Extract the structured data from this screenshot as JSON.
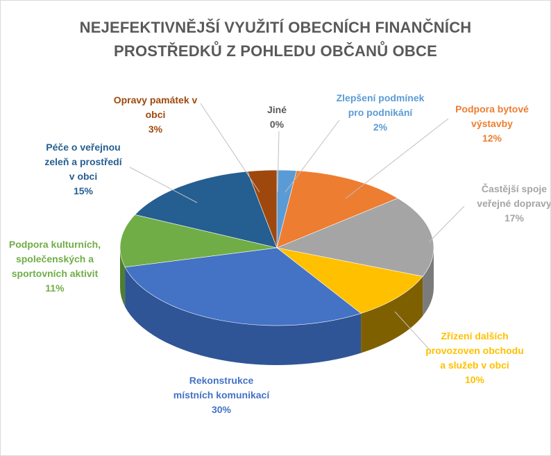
{
  "chart_data": {
    "type": "pie",
    "title_lines": [
      "NEJEFEKTIVNĚJŠÍ VYUŽITÍ OBECNÍCH FINANČNÍCH",
      "PROSTŘEDKŮ Z POHLEDU OBČANŮ OBCE"
    ],
    "slices": [
      {
        "label_lines": [
          "Zlepšení podmínek",
          "pro podnikání"
        ],
        "value": 2,
        "pct": "2%",
        "color": "#5b9bd5",
        "side": "#3f77ab"
      },
      {
        "label_lines": [
          "Podpora bytové",
          "výstavby"
        ],
        "value": 12,
        "pct": "12%",
        "color": "#ed7d31",
        "side": "#b35a1f"
      },
      {
        "label_lines": [
          "Častější spoje",
          "veřejné dopravy"
        ],
        "value": 17,
        "pct": "17%",
        "color": "#a5a5a5",
        "side": "#7b7b7b"
      },
      {
        "label_lines": [
          "Zřízení dalších",
          "provozoven obchodu",
          "a služeb v obci"
        ],
        "value": 10,
        "pct": "10%",
        "color": "#ffc000",
        "side": "#7f6000"
      },
      {
        "label_lines": [
          "Rekonstrukce",
          "místních komunikací"
        ],
        "value": 30,
        "pct": "30%",
        "color": "#4472c4",
        "side": "#2f5597"
      },
      {
        "label_lines": [
          "Podpora kulturních,",
          "společenských a",
          "sportovních aktivit"
        ],
        "value": 11,
        "pct": "11%",
        "color": "#70ad47",
        "side": "#4e7f31"
      },
      {
        "label_lines": [
          "Péče o veřejnou",
          "zeleň a prostředí",
          "v obci"
        ],
        "value": 15,
        "pct": "15%",
        "color": "#255e91",
        "side": "#1a4468"
      },
      {
        "label_lines": [
          "Opravy památek v",
          "obci"
        ],
        "value": 3,
        "pct": "3%",
        "color": "#9e480e",
        "side": "#6e3209"
      },
      {
        "label_lines": [
          "Jiné"
        ],
        "value": 0,
        "pct": "0%",
        "color": "#636363",
        "side": "#454545"
      }
    ],
    "label_colors": [
      "#5b9bd5",
      "#ed7d31",
      "#a5a5a5",
      "#ffc000",
      "#4472c4",
      "#70ad47",
      "#255e91",
      "#9e480e",
      "#595959"
    ],
    "legend": "none",
    "data_labels": "category name and percentage, outside with leader lines"
  }
}
